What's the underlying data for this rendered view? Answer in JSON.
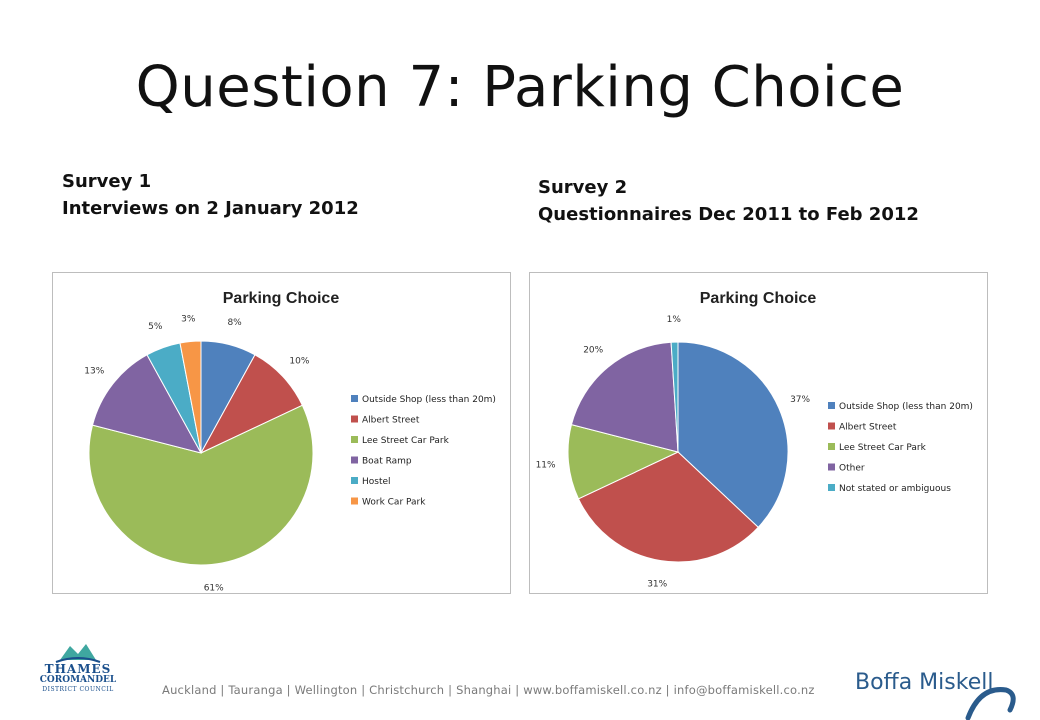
{
  "slide": {
    "title": "Question 7: Parking Choice",
    "survey1": {
      "line1": "Survey 1",
      "line2": "Interviews on 2 January 2012"
    },
    "survey2": {
      "line1": "Survey 2",
      "line2": "Questionnaires Dec 2011 to Feb 2012"
    }
  },
  "footer": {
    "text": "Auckland  |  Tauranga  |  Wellington  |  Christchurch  |  Shanghai  |  www.boffamiskell.co.nz  |  info@boffamiskell.co.nz"
  },
  "logos": {
    "council": {
      "line1": "THAMES",
      "line2": "COROMANDEL",
      "line3": "DISTRICT COUNCIL",
      "color": "#1a4f8c"
    },
    "brand": {
      "name": "Boffa Miskell",
      "color": "#2a5b8c"
    }
  },
  "chart_data": [
    {
      "type": "pie",
      "title": "Parking Choice",
      "legend": "right",
      "slices": [
        {
          "label": "Outside Shop (less than 20m)",
          "value": 8,
          "display": "8%",
          "color": "#4f81bd"
        },
        {
          "label": "Albert Street",
          "value": 10,
          "display": "10%",
          "color": "#c0504d"
        },
        {
          "label": "Lee Street Car Park",
          "value": 61,
          "display": "61%",
          "color": "#9bbb59"
        },
        {
          "label": "Boat Ramp",
          "value": 13,
          "display": "13%",
          "color": "#8064a2"
        },
        {
          "label": "Hostel",
          "value": 5,
          "display": "5%",
          "color": "#4bacc6"
        },
        {
          "label": "Work Car Park",
          "value": 3,
          "display": "3%",
          "color": "#f79646"
        }
      ]
    },
    {
      "type": "pie",
      "title": "Parking Choice",
      "legend": "right",
      "slices": [
        {
          "label": "Outside Shop (less than 20m)",
          "value": 37,
          "display": "37%",
          "color": "#4f81bd"
        },
        {
          "label": "Albert Street",
          "value": 31,
          "display": "31%",
          "color": "#c0504d"
        },
        {
          "label": "Lee Street Car Park",
          "value": 11,
          "display": "11%",
          "color": "#9bbb59"
        },
        {
          "label": "Other",
          "value": 20,
          "display": "20%",
          "color": "#8064a2"
        },
        {
          "label": "Not stated or ambiguous",
          "value": 1,
          "display": "1%",
          "color": "#4bacc6"
        }
      ]
    }
  ]
}
